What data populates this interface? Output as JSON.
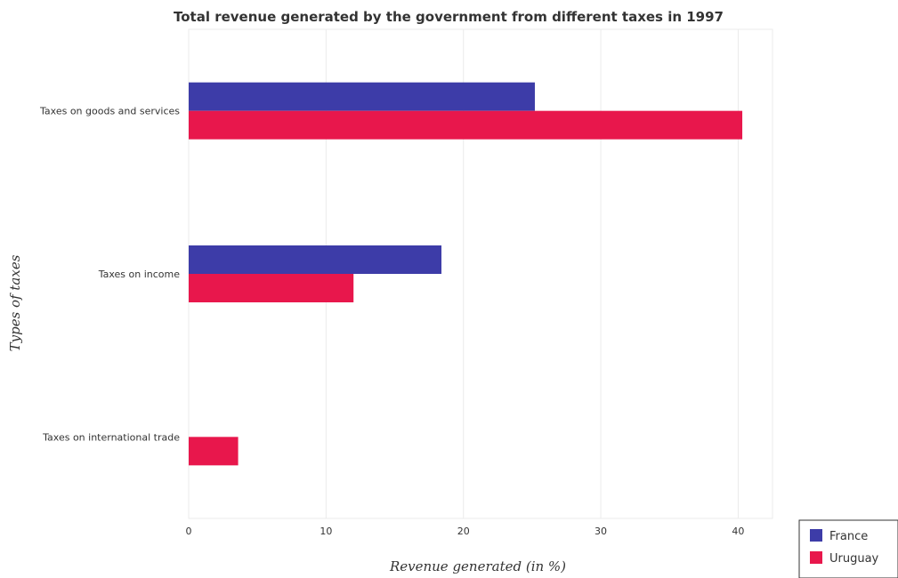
{
  "chart_data": {
    "type": "bar",
    "orientation": "horizontal",
    "title": "Total revenue generated by the government from different taxes in 1997",
    "xlabel": "Revenue generated (in %)",
    "ylabel": "Types of taxes",
    "categories": [
      "Taxes on goods and services",
      "Taxes on income",
      "Taxes on international trade"
    ],
    "series": [
      {
        "name": "France",
        "color": "#3d3ca8",
        "values": [
          25.2,
          18.4,
          0.0
        ]
      },
      {
        "name": "Uruguay",
        "color": "#e8174c",
        "values": [
          40.3,
          12.0,
          3.6
        ]
      }
    ],
    "xlim": [
      0,
      42.5
    ],
    "xticks": [
      0,
      10,
      20,
      30,
      40
    ],
    "grid": true,
    "legend_position": "bottom-right"
  }
}
